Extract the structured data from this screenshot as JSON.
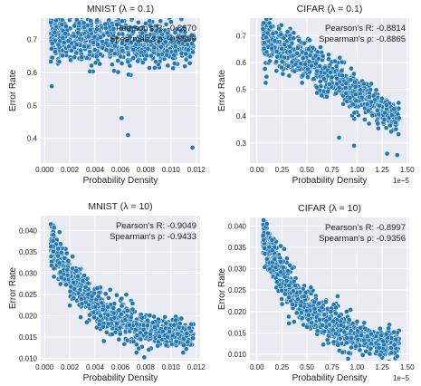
{
  "chart_data": [
    {
      "type": "scatter",
      "title": "MNIST (λ = 0.1)",
      "xlabel": "Probability Density",
      "ylabel": "Error Rate",
      "xlim": [
        -0.0003,
        0.0123
      ],
      "ylim": [
        0.325,
        0.765
      ],
      "xticks": [
        0.0,
        0.002,
        0.004,
        0.006,
        0.008,
        0.01,
        0.012
      ],
      "xtick_labels": [
        "0.000",
        "0.002",
        "0.004",
        "0.006",
        "0.008",
        "0.010",
        "0.012"
      ],
      "yticks": [
        0.4,
        0.5,
        0.6,
        0.7
      ],
      "ytick_labels": [
        "0.4",
        "0.5",
        "0.6",
        "0.7"
      ],
      "x_offset_label": "",
      "annotations": [
        "Pearson's R: -0.8670",
        "Spearman's ρ: -0.8809"
      ],
      "grid": true,
      "point_color": "#1f77b4",
      "trend": {
        "x_start": 0.0005,
        "x_end": 0.0118,
        "a": 0.715,
        "b": -0.032,
        "tau": 0.0042,
        "spread": 0.045,
        "count": 780
      },
      "points": [
        [
          0.0005,
          0.752
        ],
        [
          0.0066,
          0.41
        ],
        [
          0.0117,
          0.372
        ],
        [
          0.0061,
          0.462
        ]
      ]
    },
    {
      "type": "scatter",
      "title": "CIFAR (λ = 0.1)",
      "xlabel": "Probability Density",
      "ylabel": "Error Rate",
      "xlim": [
        -0.07,
        1.52
      ],
      "ylim": [
        0.225,
        0.765
      ],
      "xticks": [
        0.0,
        0.25,
        0.5,
        0.75,
        1.0,
        1.25,
        1.5
      ],
      "xtick_labels": [
        "0.00",
        "0.25",
        "0.50",
        "0.75",
        "1.00",
        "1.25",
        "1.50"
      ],
      "yticks": [
        0.3,
        0.4,
        0.5,
        0.6,
        0.7
      ],
      "ytick_labels": [
        "0.3",
        "0.4",
        "0.5",
        "0.6",
        "0.7"
      ],
      "x_offset_label": "1e−5",
      "annotations": [
        "Pearson's R: -0.8814",
        "Spearman's ρ: -0.8865"
      ],
      "grid": true,
      "point_color": "#1f77b4",
      "trend": {
        "x_start": 0.06,
        "x_end": 1.42,
        "a": 0.695,
        "b": -0.255,
        "tau": -1,
        "spread": 0.05,
        "count": 700
      },
      "points": [
        [
          0.97,
          0.29
        ],
        [
          1.3,
          0.26
        ],
        [
          1.4,
          0.255
        ],
        [
          0.82,
          0.32
        ]
      ]
    },
    {
      "type": "scatter",
      "title": "MNIST (λ = 10)",
      "xlabel": "Probability Density",
      "ylabel": "Error Rate",
      "xlim": [
        -0.0003,
        0.0123
      ],
      "ylim": [
        0.0095,
        0.0435
      ],
      "xticks": [
        0.0,
        0.002,
        0.004,
        0.006,
        0.008,
        0.01,
        0.012
      ],
      "xtick_labels": [
        "0.000",
        "0.002",
        "0.004",
        "0.006",
        "0.008",
        "0.010",
        "0.012"
      ],
      "yticks": [
        0.01,
        0.015,
        0.02,
        0.025,
        0.03,
        0.035,
        0.04
      ],
      "ytick_labels": [
        "0.010",
        "0.015",
        "0.020",
        "0.025",
        "0.030",
        "0.035",
        "0.040"
      ],
      "x_offset_label": "",
      "annotations": [
        "Pearson's R: -0.9049",
        "Spearman's ρ: -0.9433"
      ],
      "grid": true,
      "point_color": "#1f77b4",
      "trend": {
        "x_start": 0.0005,
        "x_end": 0.0118,
        "a": 0.0375,
        "b": -0.0235,
        "tau": 0.0035,
        "spread": 0.0028,
        "count": 850
      },
      "points": [
        [
          0.0005,
          0.0415
        ],
        [
          0.0007,
          0.039
        ]
      ]
    },
    {
      "type": "scatter",
      "title": "CIFAR (λ = 10)",
      "xlabel": "Probability Density",
      "ylabel": "Error Rate",
      "xlim": [
        -0.07,
        1.52
      ],
      "ylim": [
        0.0085,
        0.042
      ],
      "xticks": [
        0.0,
        0.25,
        0.5,
        0.75,
        1.0,
        1.25,
        1.5
      ],
      "xtick_labels": [
        "0.00",
        "0.25",
        "0.50",
        "0.75",
        "1.00",
        "1.25",
        "1.50"
      ],
      "yticks": [
        0.01,
        0.015,
        0.02,
        0.025,
        0.03,
        0.035,
        0.04
      ],
      "ytick_labels": [
        "0.010",
        "0.015",
        "0.020",
        "0.025",
        "0.030",
        "0.035",
        "0.040"
      ],
      "x_offset_label": "1e−5",
      "annotations": [
        "Pearson's R: -0.8997",
        "Spearman's ρ: -0.9356"
      ],
      "grid": true,
      "point_color": "#1f77b4",
      "trend": {
        "x_start": 0.06,
        "x_end": 1.42,
        "a": 0.0375,
        "b": -0.0265,
        "tau": 0.45,
        "spread": 0.0028,
        "count": 850
      },
      "points": [
        [
          0.1,
          0.0405
        ],
        [
          1.4,
          0.0095
        ]
      ]
    }
  ]
}
